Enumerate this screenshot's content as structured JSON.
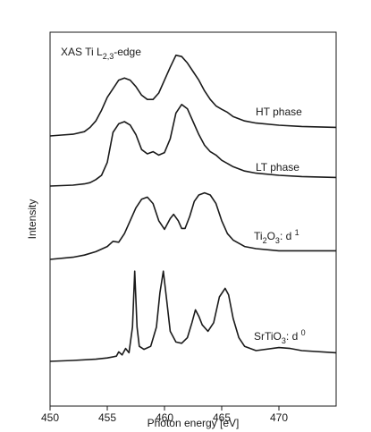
{
  "chart_data": {
    "type": "line",
    "xlabel": "Photon energy [eV]",
    "ylabel": "Intensity",
    "xlim": [
      450,
      475
    ],
    "x_ticks": [
      450,
      455,
      460,
      465,
      470
    ],
    "x_tick_labels": [
      "450",
      "455",
      "460",
      "465",
      "470"
    ],
    "y_ticks": [],
    "grid": false,
    "annotations": {
      "edge_prefix": "XAS Ti L",
      "edge_sub": "2,3",
      "edge_suffix": "-edge"
    },
    "series": [
      {
        "name": "HT phase",
        "label_parts": {
          "a": "HT phase",
          "sub": "",
          "b": "",
          "sup": ""
        },
        "x": [
          450.0,
          451.0,
          452.0,
          453.0,
          453.5,
          454.0,
          454.5,
          455.0,
          455.5,
          456.0,
          456.5,
          457.0,
          457.5,
          458.0,
          458.5,
          459.0,
          459.5,
          460.0,
          460.5,
          461.0,
          461.5,
          462.0,
          462.5,
          463.0,
          463.5,
          464.0,
          464.5,
          465.0,
          465.5,
          466.0,
          467.0,
          468.0,
          470.0,
          472.0,
          475.0
        ],
        "y": [
          0.0,
          0.02,
          0.04,
          0.1,
          0.2,
          0.35,
          0.6,
          0.9,
          1.1,
          1.3,
          1.35,
          1.3,
          1.15,
          0.95,
          0.85,
          0.85,
          1.0,
          1.3,
          1.6,
          1.88,
          1.85,
          1.7,
          1.5,
          1.3,
          1.05,
          0.85,
          0.7,
          0.62,
          0.55,
          0.45,
          0.35,
          0.3,
          0.25,
          0.22,
          0.2
        ]
      },
      {
        "name": "LT phase",
        "label_parts": {
          "a": "LT phase",
          "sub": "",
          "b": "",
          "sup": ""
        },
        "x": [
          450.0,
          452.0,
          453.0,
          453.5,
          454.0,
          454.5,
          455.0,
          455.5,
          456.0,
          456.5,
          457.0,
          457.5,
          458.0,
          458.5,
          459.0,
          459.5,
          460.0,
          460.5,
          461.0,
          461.5,
          462.0,
          462.5,
          463.0,
          463.5,
          464.0,
          464.5,
          465.0,
          466.0,
          467.0,
          468.0,
          470.0,
          472.0,
          475.0
        ],
        "y": [
          0.0,
          0.02,
          0.05,
          0.08,
          0.15,
          0.25,
          0.55,
          1.25,
          1.45,
          1.5,
          1.42,
          1.2,
          0.85,
          0.75,
          0.8,
          0.72,
          0.78,
          1.1,
          1.7,
          1.9,
          1.8,
          1.5,
          1.2,
          0.95,
          0.8,
          0.72,
          0.6,
          0.45,
          0.35,
          0.3,
          0.25,
          0.22,
          0.2
        ]
      },
      {
        "name": "Ti2O3: d 1",
        "label_parts": {
          "a": "Ti",
          "sub": "2",
          "b": "O",
          "sub2": "3",
          "c": ":  d ",
          "sup": "1"
        },
        "x": [
          450.0,
          452.0,
          453.0,
          454.0,
          455.0,
          455.5,
          456.0,
          456.5,
          457.0,
          457.5,
          458.0,
          458.5,
          459.0,
          459.5,
          460.0,
          460.5,
          460.8,
          461.2,
          461.5,
          461.8,
          462.2,
          462.6,
          463.0,
          463.5,
          464.0,
          464.5,
          465.0,
          465.5,
          466.0,
          467.0,
          468.0,
          470.0,
          472.0,
          475.0
        ],
        "y": [
          0.0,
          0.05,
          0.1,
          0.18,
          0.3,
          0.42,
          0.4,
          0.6,
          0.9,
          1.2,
          1.4,
          1.45,
          1.3,
          0.9,
          0.7,
          0.95,
          1.05,
          0.9,
          0.72,
          0.72,
          1.0,
          1.35,
          1.5,
          1.55,
          1.5,
          1.3,
          0.9,
          0.6,
          0.45,
          0.3,
          0.25,
          0.2,
          0.2,
          0.2
        ]
      },
      {
        "name": "SrTiO3: d 0",
        "label_parts": {
          "a": "SrTiO",
          "sub": "3",
          "b": ": d ",
          "sup": "0"
        },
        "x": [
          450.0,
          452.0,
          454.0,
          455.0,
          455.8,
          456.0,
          456.3,
          456.6,
          456.9,
          457.2,
          457.4,
          457.6,
          457.8,
          458.2,
          458.8,
          459.3,
          459.6,
          459.9,
          460.2,
          460.5,
          461.0,
          461.5,
          462.0,
          462.4,
          462.7,
          463.0,
          463.3,
          463.8,
          464.3,
          464.8,
          465.3,
          465.6,
          466.0,
          466.5,
          467.0,
          468.0,
          470.0,
          471.0,
          472.0,
          475.0
        ],
        "y": [
          0.0,
          0.02,
          0.05,
          0.08,
          0.12,
          0.22,
          0.15,
          0.3,
          0.2,
          0.8,
          2.1,
          0.8,
          0.35,
          0.28,
          0.35,
          0.8,
          1.6,
          2.1,
          1.4,
          0.7,
          0.45,
          0.42,
          0.55,
          0.9,
          1.2,
          1.05,
          0.85,
          0.7,
          0.9,
          1.5,
          1.7,
          1.55,
          1.0,
          0.55,
          0.35,
          0.25,
          0.32,
          0.3,
          0.25,
          0.2
        ]
      }
    ]
  }
}
